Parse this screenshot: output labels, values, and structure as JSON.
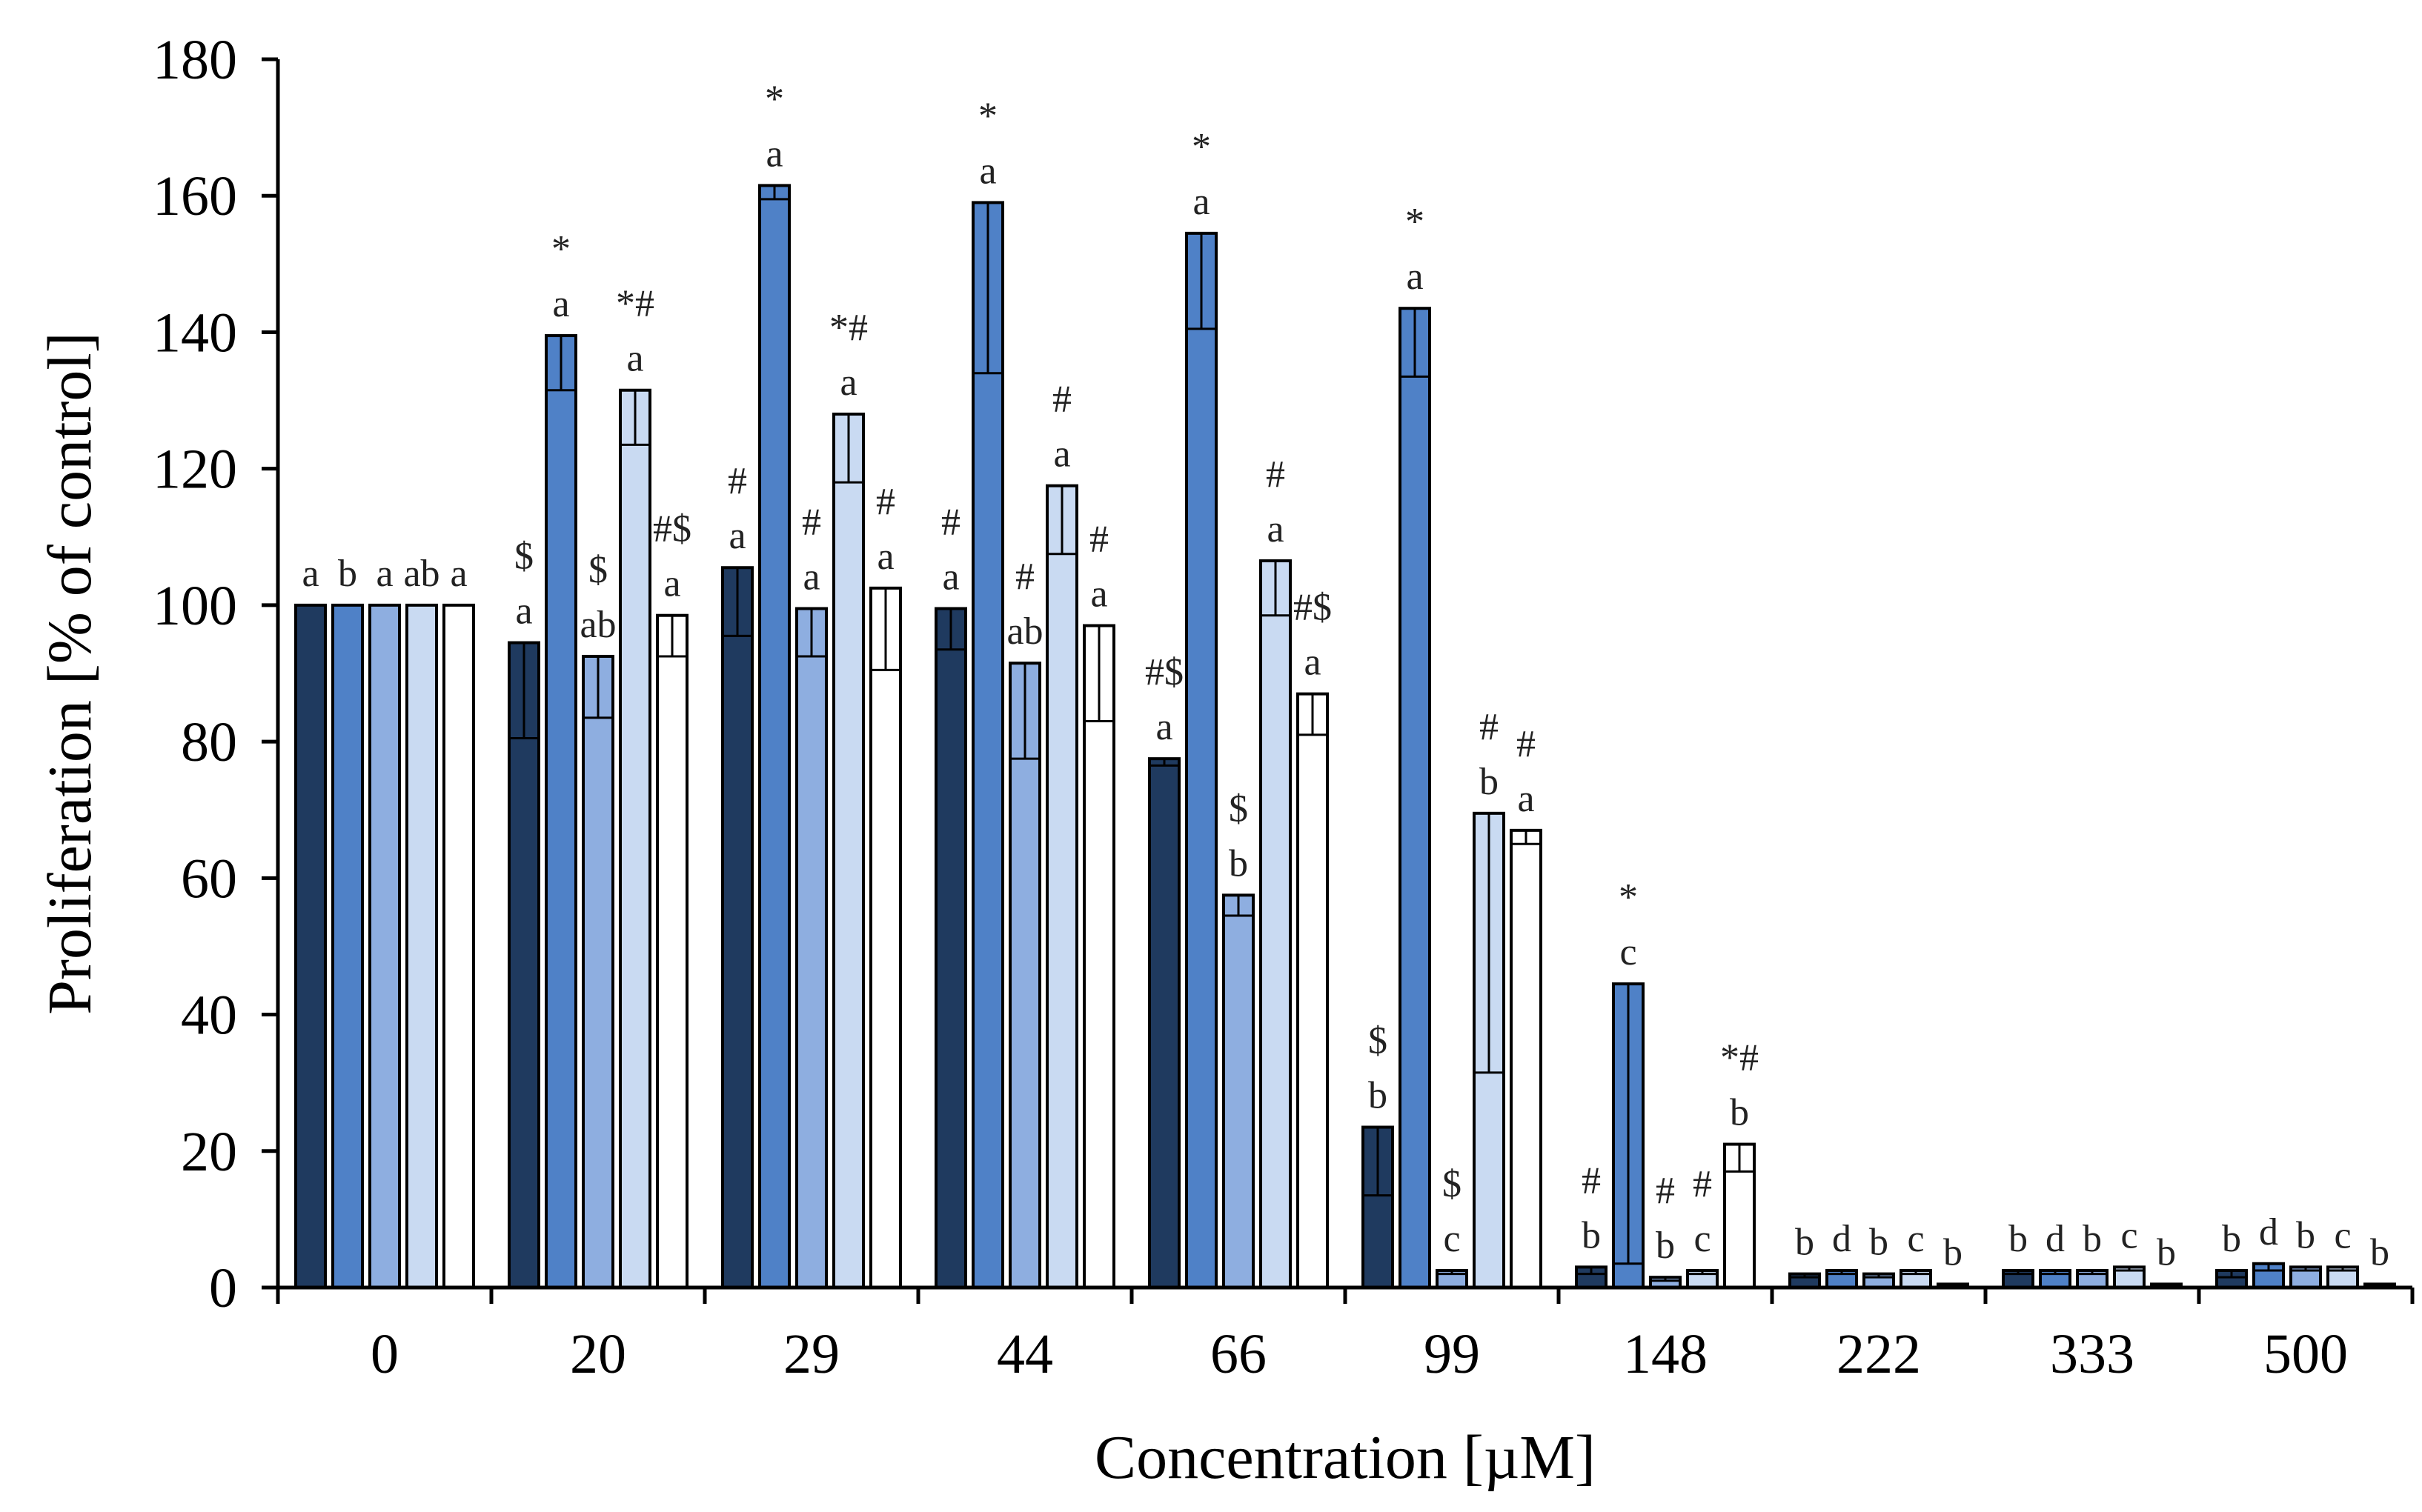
{
  "chart_data": {
    "type": "bar",
    "xlabel": "Concentration [µM]",
    "ylabel": "Proliferation  [% of control]",
    "ylim": [
      0,
      180
    ],
    "yticks": [
      0,
      20,
      40,
      60,
      80,
      100,
      120,
      140,
      160,
      180
    ],
    "grid": false,
    "legend": "none",
    "categories": [
      "0",
      "20",
      "29",
      "44",
      "66",
      "99",
      "148",
      "222",
      "333",
      "500"
    ],
    "series": [
      {
        "color": "#1f3a5f",
        "values": [
          100,
          94.5,
          105.5,
          99.5,
          77.5,
          23.5,
          3.0,
          2.0,
          2.5,
          2.5
        ],
        "errors": [
          0,
          14,
          10,
          6,
          1,
          10,
          1,
          0.5,
          0.5,
          1
        ],
        "labels": [
          [
            "a"
          ],
          [
            "$",
            "a"
          ],
          [
            "#",
            "a"
          ],
          [
            "#",
            "a"
          ],
          [
            "#$",
            "a"
          ],
          [
            "$",
            "b"
          ],
          [
            "#",
            "b"
          ],
          [
            "b"
          ],
          [
            "b"
          ],
          [
            "b"
          ]
        ]
      },
      {
        "color": "#4f81c7",
        "values": [
          100,
          139.5,
          161.5,
          159.0,
          154.5,
          143.5,
          44.5,
          2.5,
          2.5,
          3.5
        ],
        "errors": [
          0,
          8,
          2,
          25,
          14,
          10,
          41,
          0.5,
          0.5,
          1
        ],
        "labels": [
          [
            "b"
          ],
          [
            "*",
            "a"
          ],
          [
            "*",
            "a"
          ],
          [
            "*",
            "a"
          ],
          [
            "*",
            "a"
          ],
          [
            "*",
            "a"
          ],
          [
            "*",
            "c"
          ],
          [
            "d"
          ],
          [
            "d"
          ],
          [
            "d"
          ]
        ]
      },
      {
        "color": "#8eaee0",
        "values": [
          100,
          92.5,
          99.5,
          91.5,
          57.5,
          2.5,
          1.5,
          2.0,
          2.5,
          3.0
        ],
        "errors": [
          0,
          9,
          7,
          14,
          3,
          0.5,
          0.5,
          0.5,
          0.5,
          0.5
        ],
        "labels": [
          [
            "a"
          ],
          [
            "$",
            "ab"
          ],
          [
            "#",
            "a"
          ],
          [
            "#",
            "ab"
          ],
          [
            "$",
            "b"
          ],
          [
            "$",
            "c"
          ],
          [
            "#",
            "b"
          ],
          [
            "b"
          ],
          [
            "b"
          ],
          [
            "b"
          ]
        ]
      },
      {
        "color": "#c9daf2",
        "values": [
          100,
          131.5,
          128.0,
          117.5,
          106.5,
          69.5,
          2.5,
          2.5,
          3.0,
          3.0
        ],
        "errors": [
          0,
          8,
          10,
          10,
          8,
          38,
          0.5,
          0.5,
          0.5,
          0.5
        ],
        "labels": [
          [
            "ab"
          ],
          [
            "*#",
            "a"
          ],
          [
            "*#",
            "a"
          ],
          [
            "#",
            "a"
          ],
          [
            "#",
            "a"
          ],
          [
            "#",
            "b"
          ],
          [
            "#",
            "c"
          ],
          [
            "c"
          ],
          [
            "c"
          ],
          [
            "c"
          ]
        ]
      },
      {
        "color": "#ffffff",
        "values": [
          100,
          98.5,
          102.5,
          97.0,
          87.0,
          67.0,
          21.0,
          0.5,
          0.5,
          0.5
        ],
        "errors": [
          0,
          6,
          12,
          14,
          6,
          2,
          4,
          0.2,
          0.2,
          0.2
        ],
        "labels": [
          [
            "a"
          ],
          [
            "#$",
            "a"
          ],
          [
            "#",
            "a"
          ],
          [
            "#",
            "a"
          ],
          [
            "#$",
            "a"
          ],
          [
            "#",
            "a"
          ],
          [
            "*#",
            "b"
          ],
          [
            "b"
          ],
          [
            "b"
          ],
          [
            "b"
          ]
        ]
      }
    ]
  }
}
